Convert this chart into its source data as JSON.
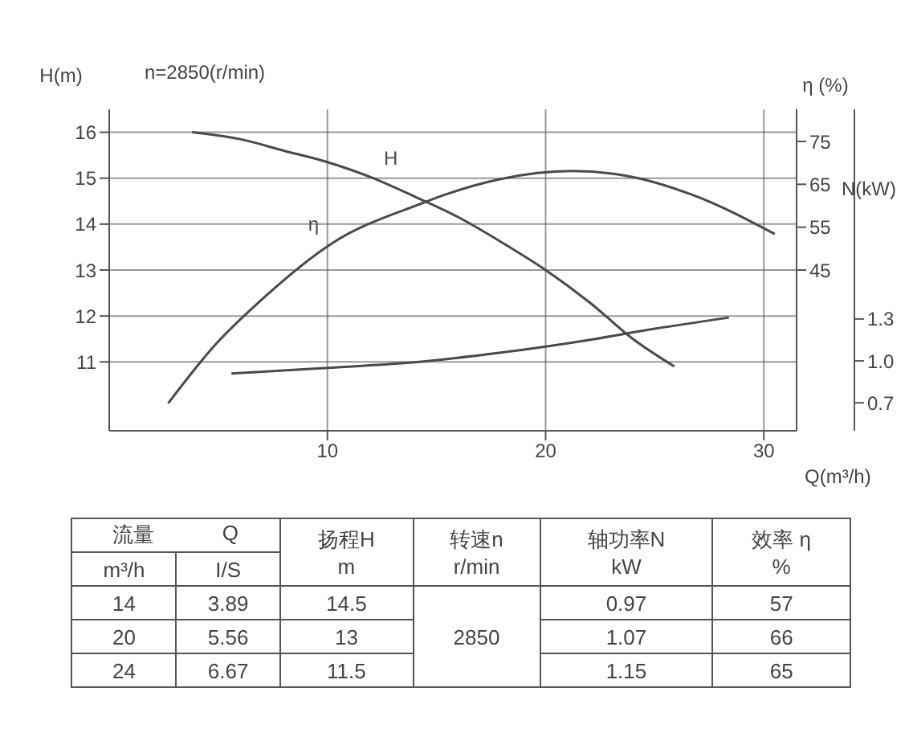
{
  "chart_data": [
    {
      "type": "line",
      "xlabel": "Q(m³/h)",
      "ylabel": "H(m)",
      "y2label": "η (%)",
      "y3label": "N(kW)",
      "annotations": [
        "n=2850(r/min)"
      ],
      "xlim": [
        0,
        31.5
      ],
      "xticks": [
        10,
        20,
        30
      ],
      "ylim": [
        9.5,
        16.5
      ],
      "yticks": [
        11,
        12,
        13,
        14,
        15,
        16
      ],
      "y2lim": [
        7.5,
        82.5
      ],
      "y2ticks": [
        45,
        55,
        65,
        75
      ],
      "y3lim": [
        0.5,
        2.8
      ],
      "y3ticks": [
        0.7,
        {
          "value": 1.0,
          "label": "1.0"
        },
        1.3
      ],
      "grid": true,
      "legend": false,
      "marker": "none",
      "line_style": "solid",
      "series": [
        {
          "name": "H",
          "color": "#4a4a4a",
          "x": [
            3.8,
            6,
            8,
            10,
            12,
            14,
            16,
            18,
            20,
            22,
            24,
            25.9
          ],
          "values": [
            16.0,
            15.85,
            15.6,
            15.35,
            15.02,
            14.6,
            14.15,
            13.6,
            13.0,
            12.3,
            11.5,
            10.9
          ]
        },
        {
          "name": "η",
          "color": "#4a4a4a",
          "axis": "y2",
          "x": [
            2.7,
            4.9,
            6.9,
            10.2,
            14.4,
            15.4,
            17.9,
            21.2,
            23.7,
            26.7,
            30.5
          ],
          "values": [
            13.9,
            27.8,
            37.7,
            51.2,
            60.7,
            62.6,
            66.2,
            68.1,
            67.0,
            62.6,
            53.4
          ]
        },
        {
          "color": "#4a4a4a",
          "axis": "y3",
          "x": [
            5.6,
            10,
            14,
            18,
            22,
            25,
            28.4
          ],
          "values": [
            0.91,
            0.95,
            0.99,
            1.06,
            1.15,
            1.23,
            1.31
          ]
        }
      ]
    },
    {
      "type": "other",
      "annotations": [
        "流量",
        "Q",
        "m³/h",
        "I/S",
        "扬程H",
        "m",
        "转速n",
        "r/min",
        "轴功率N",
        "kW",
        "效率 η",
        "%",
        "14",
        "3.89",
        "14.5",
        "2850",
        "0.97",
        "57",
        "20",
        "5.56",
        "13",
        "1.07",
        "66",
        "24",
        "6.67",
        "11.5",
        "1.15",
        "65"
      ]
    }
  ]
}
